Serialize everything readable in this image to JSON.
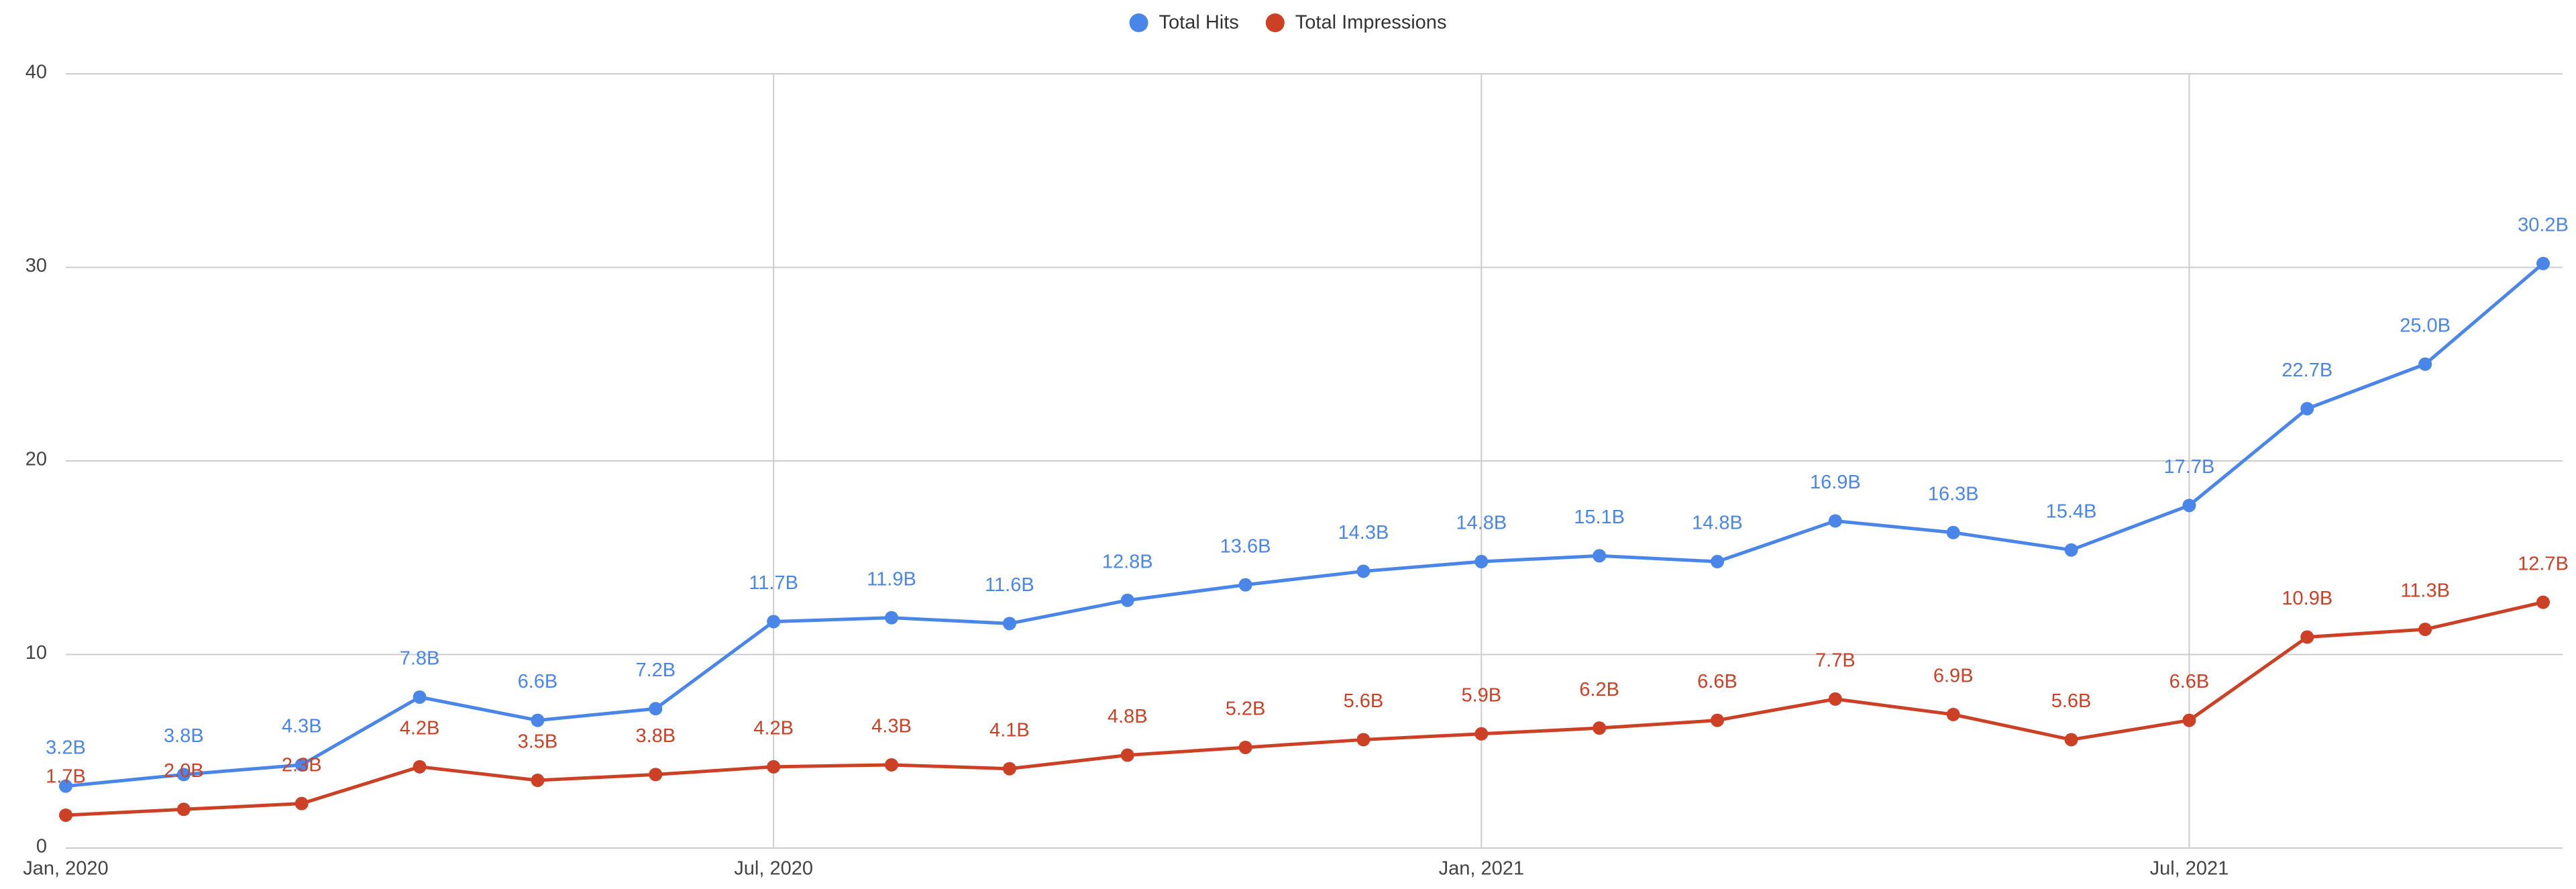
{
  "chart_data": {
    "type": "line",
    "categories": [
      "Jan, 2020",
      null,
      null,
      null,
      null,
      null,
      "Jul, 2020",
      null,
      null,
      null,
      null,
      null,
      "Jan, 2021",
      null,
      null,
      null,
      null,
      null,
      "Jul, 2021",
      null,
      null,
      null
    ],
    "series": [
      {
        "name": "Total Hits",
        "color": "#4a86e8",
        "values": [
          3.2,
          3.8,
          4.3,
          7.8,
          6.6,
          7.2,
          11.7,
          11.9,
          11.6,
          12.8,
          13.6,
          14.3,
          14.8,
          15.1,
          14.8,
          16.9,
          16.3,
          15.4,
          17.7,
          22.7,
          25.0,
          30.2
        ],
        "value_labels": [
          "3.2B",
          "3.8B",
          "4.3B",
          "7.8B",
          "6.6B",
          "7.2B",
          "11.7B",
          "11.9B",
          "11.6B",
          "12.8B",
          "13.6B",
          "14.3B",
          "14.8B",
          "15.1B",
          "14.8B",
          "16.9B",
          "16.3B",
          "15.4B",
          "17.7B",
          "22.7B",
          "25.0B",
          "30.2B"
        ]
      },
      {
        "name": "Total Impressions",
        "color": "#cc4125",
        "values": [
          1.7,
          2.0,
          2.3,
          4.2,
          3.5,
          3.8,
          4.2,
          4.3,
          4.1,
          4.8,
          5.2,
          5.6,
          5.9,
          6.2,
          6.6,
          7.7,
          6.9,
          5.6,
          6.6,
          10.9,
          11.3,
          12.7
        ],
        "value_labels": [
          "1.7B",
          "2.0B",
          "2.3B",
          "4.2B",
          "3.5B",
          "3.8B",
          "4.2B",
          "4.3B",
          "4.1B",
          "4.8B",
          "5.2B",
          "5.6B",
          "5.9B",
          "6.2B",
          "6.6B",
          "7.7B",
          "6.9B",
          "5.6B",
          "6.6B",
          "10.9B",
          "11.3B",
          "12.7B"
        ]
      }
    ],
    "ylim": [
      0,
      40
    ],
    "yticks": [
      0,
      10,
      20,
      30,
      40
    ],
    "grid": true,
    "legend": "top"
  }
}
